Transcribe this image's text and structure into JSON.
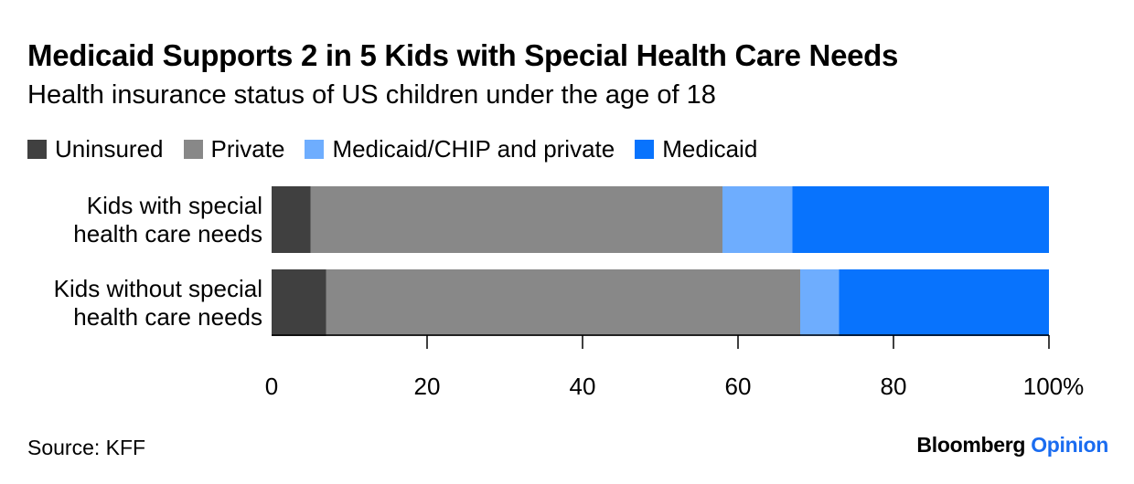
{
  "title": "Medicaid Supports 2 in 5 Kids with Special Health Care Needs",
  "subtitle": "Health insurance status of US children under the age of 18",
  "source": "Source: KFF",
  "brand": {
    "name": "Bloomberg",
    "accent": "Opinion"
  },
  "legend": [
    {
      "label": "Uninsured",
      "color": "#404040"
    },
    {
      "label": "Private",
      "color": "#888888"
    },
    {
      "label": "Medicaid/CHIP and private",
      "color": "#6eadfe"
    },
    {
      "label": "Medicaid",
      "color": "#0873fd"
    }
  ],
  "chart_data": {
    "type": "bar",
    "orientation": "horizontal",
    "stacked": true,
    "categories": [
      [
        "Kids with special",
        "health care needs"
      ],
      [
        "Kids without special",
        "health care needs"
      ]
    ],
    "series": [
      {
        "name": "Uninsured",
        "color": "#404040",
        "values": [
          5,
          7
        ]
      },
      {
        "name": "Private",
        "color": "#888888",
        "values": [
          53,
          61
        ]
      },
      {
        "name": "Medicaid/CHIP and private",
        "color": "#6eadfe",
        "values": [
          9,
          5
        ]
      },
      {
        "name": "Medicaid",
        "color": "#0873fd",
        "values": [
          33,
          27
        ]
      }
    ],
    "xlim": [
      0,
      100
    ],
    "xticks": [
      0,
      20,
      40,
      60,
      80,
      100
    ],
    "xtick_labels": [
      "0",
      "20",
      "40",
      "60",
      "80",
      "100%"
    ],
    "grid": false,
    "legend_position": "top-left"
  }
}
